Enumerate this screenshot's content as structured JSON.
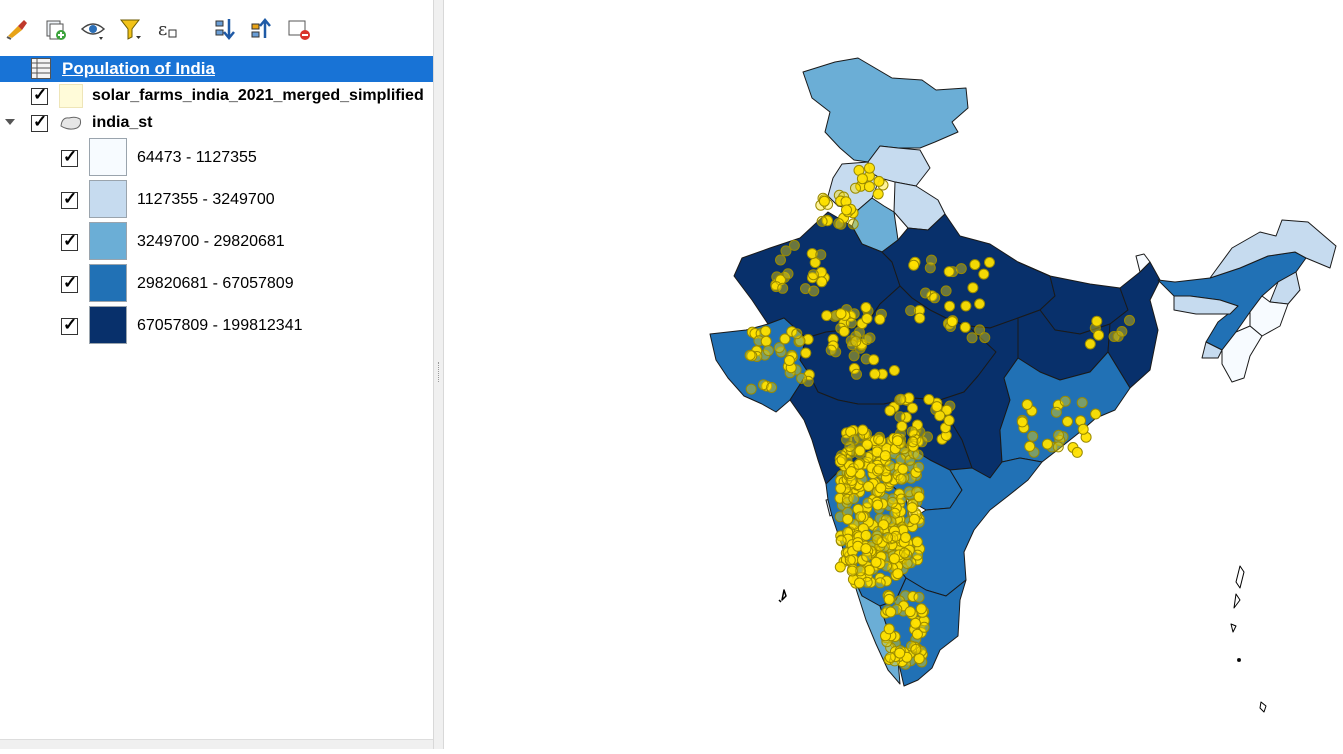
{
  "layers_panel": {
    "toolbar": [
      {
        "icon": "style-brush-icon"
      },
      {
        "icon": "add-group-icon"
      },
      {
        "icon": "visibility-eye-icon"
      },
      {
        "icon": "filter-legend-icon"
      },
      {
        "icon": "filter-expression-icon"
      },
      {
        "icon": "expand-all-icon"
      },
      {
        "icon": "collapse-all-icon"
      },
      {
        "icon": "remove-layer-icon"
      }
    ],
    "group": {
      "title": "Population of India",
      "icon": "table-group-icon"
    },
    "layers": [
      {
        "name": "solar_farms_india_2021_merged_simplified",
        "checked": true,
        "symbol_color": "#fffbd9"
      },
      {
        "name": "india_st",
        "checked": true,
        "icon": "polygon-layer-icon",
        "expanded": true
      }
    ],
    "legend_classes": [
      {
        "label": "64473 - 1127355",
        "color": "#f7fbff",
        "checked": true
      },
      {
        "label": "1127355 - 3249700",
        "color": "#c6dbef",
        "checked": true
      },
      {
        "label": "3249700 - 29820681",
        "color": "#6baed6",
        "checked": true
      },
      {
        "label": "29820681 - 67057809",
        "color": "#2171b5",
        "checked": true
      },
      {
        "label": "67057809 - 199812341",
        "color": "#08306b",
        "checked": true
      }
    ]
  },
  "map": {
    "point_color": "#ffe100",
    "point_border": "#9a8a00",
    "state_border": "#1a1a1a"
  }
}
